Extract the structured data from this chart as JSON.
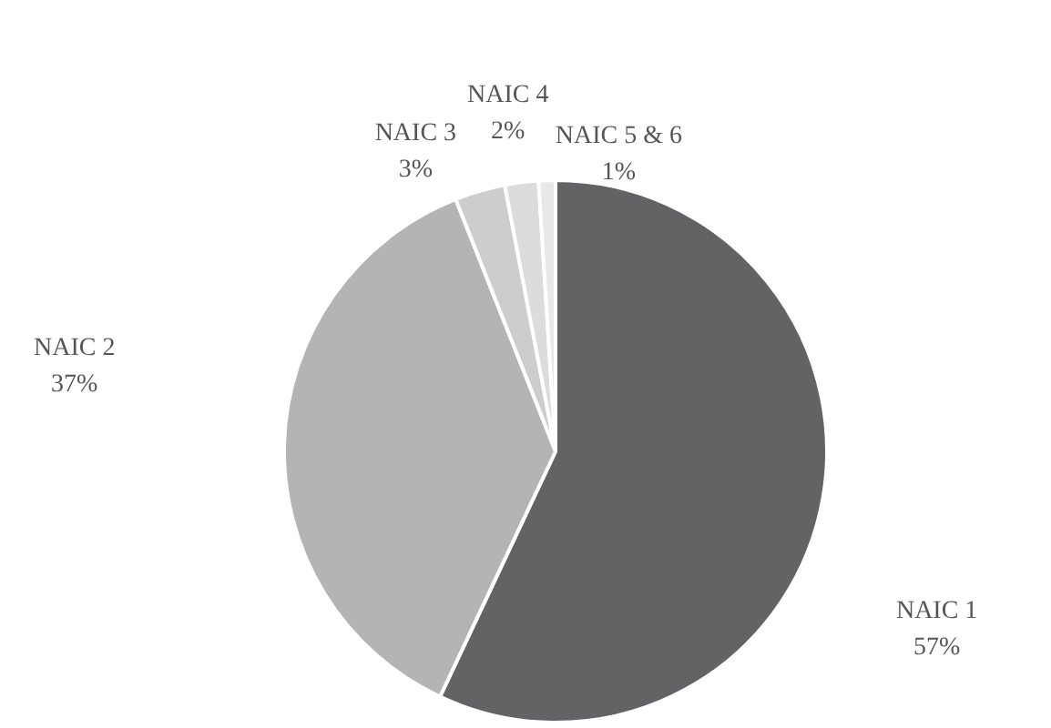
{
  "chart_data": {
    "type": "pie",
    "categories": [
      "NAIC 1",
      "NAIC 2",
      "NAIC 3",
      "NAIC 4",
      "NAIC 5 & 6"
    ],
    "values": [
      57,
      37,
      3,
      2,
      1
    ],
    "value_labels": [
      "57%",
      "37%",
      "3%",
      "2%",
      "1%"
    ],
    "colors": [
      "#636366",
      "#b4b4b4",
      "#cdcdcd",
      "#dcdcdc",
      "#e8e8e8"
    ],
    "legend": false
  }
}
